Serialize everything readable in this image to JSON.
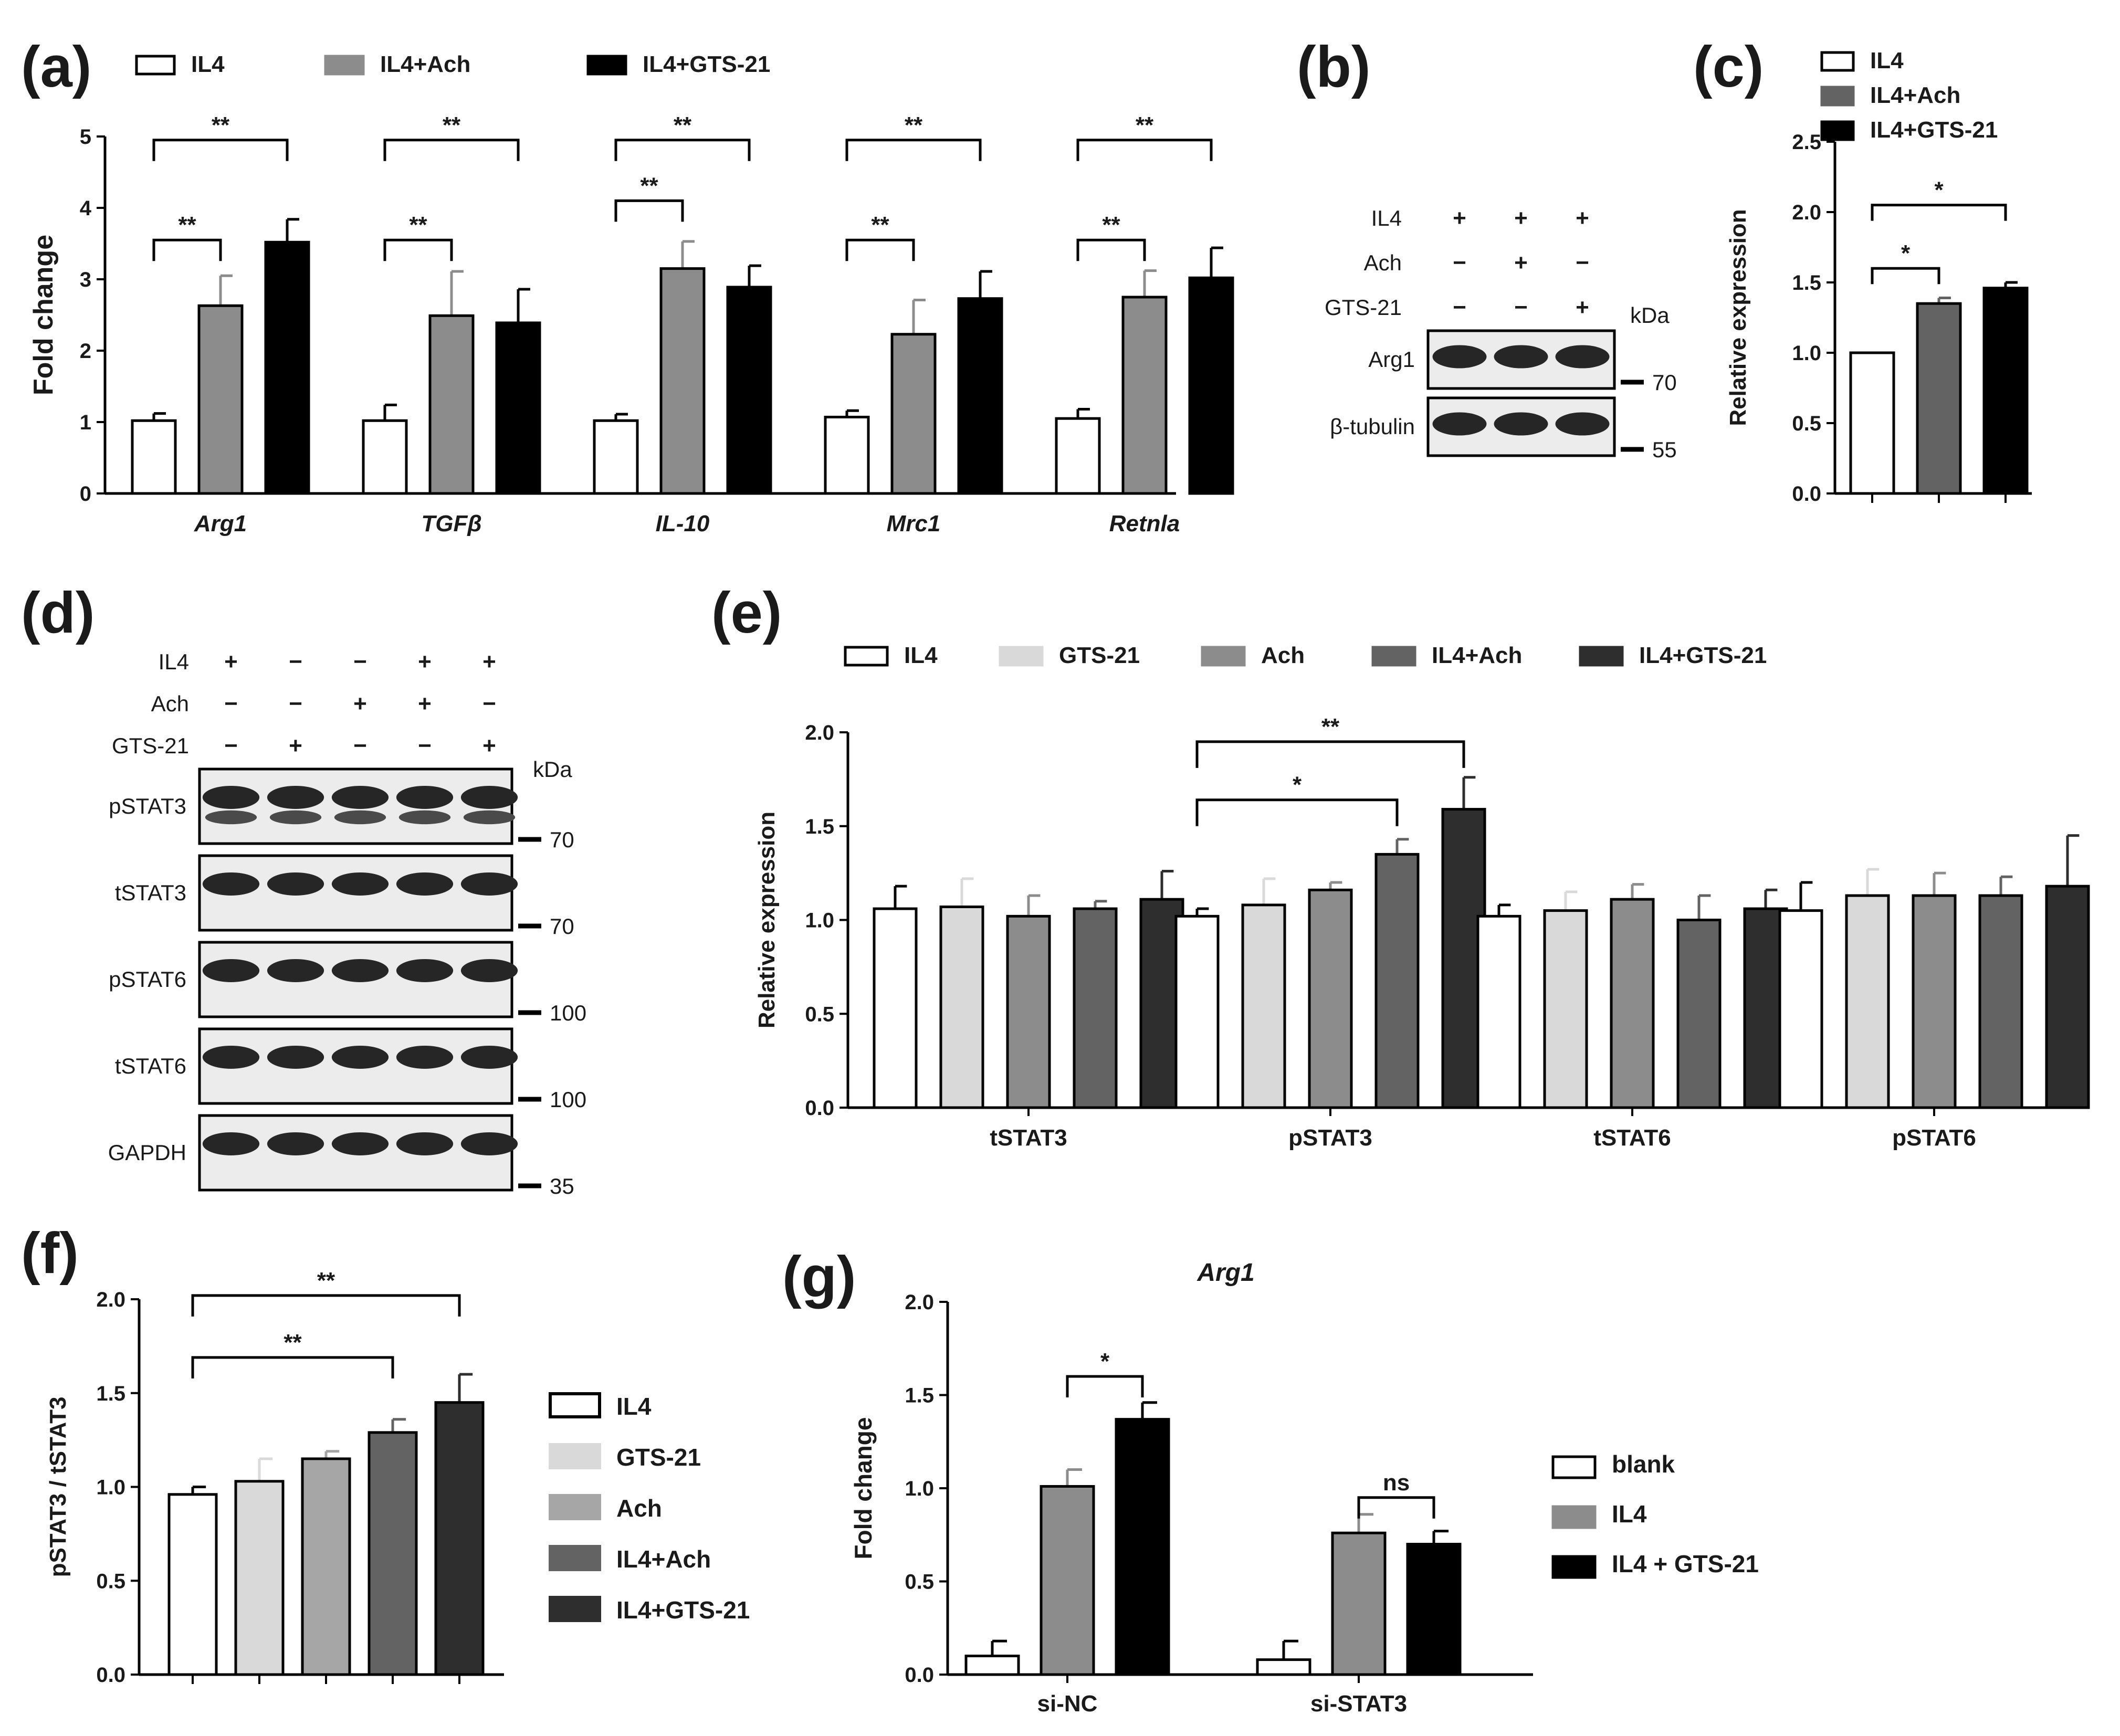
{
  "colors": {
    "white": "#ffffff",
    "lightgray": "#d9d9d9",
    "midgray": "#a6a6a6",
    "gray": "#8c8c8c",
    "darkgray": "#636363",
    "nearblack": "#2e2e2e",
    "black": "#000000"
  },
  "chart_data": [
    {
      "panel": "(a)",
      "type": "bar",
      "ylabel": "Fold change",
      "ylim": [
        0,
        5
      ],
      "yticks": [
        "0",
        "1",
        "2",
        "3",
        "4",
        "5"
      ],
      "categories": [
        "Arg1",
        "TGFβ",
        "IL-10",
        "Mrc1",
        "Retnla"
      ],
      "series": [
        {
          "name": "IL4",
          "color": "#ffffff",
          "values": [
            1.02,
            1.02,
            1.02,
            1.07,
            1.05
          ],
          "errors": [
            0.1,
            0.22,
            0.09,
            0.09,
            0.13
          ]
        },
        {
          "name": "IL4+Ach",
          "color": "#8c8c8c",
          "values": [
            2.63,
            2.49,
            3.15,
            2.23,
            2.75
          ],
          "errors": [
            0.42,
            0.62,
            0.38,
            0.48,
            0.37
          ]
        },
        {
          "name": "IL4+GTS-21",
          "color": "#000000",
          "values": [
            3.52,
            2.39,
            2.89,
            2.73,
            3.02
          ],
          "errors": [
            0.32,
            0.47,
            0.3,
            0.38,
            0.42
          ]
        }
      ],
      "significance": [
        {
          "label": "**",
          "group": 0,
          "from": 0,
          "to": 1,
          "y": 3.55
        },
        {
          "label": "**",
          "group": 0,
          "from": 0,
          "to": 2,
          "y": 4.95
        },
        {
          "label": "**",
          "group": 1,
          "from": 0,
          "to": 1,
          "y": 3.55
        },
        {
          "label": "**",
          "group": 1,
          "from": 0,
          "to": 2,
          "y": 4.95
        },
        {
          "label": "**",
          "group": 2,
          "from": 0,
          "to": 1,
          "y": 4.1
        },
        {
          "label": "**",
          "group": 2,
          "from": 0,
          "to": 2,
          "y": 4.95
        },
        {
          "label": "**",
          "group": 3,
          "from": 0,
          "to": 1,
          "y": 3.55
        },
        {
          "label": "**",
          "group": 3,
          "from": 0,
          "to": 2,
          "y": 4.95
        },
        {
          "label": "**",
          "group": 4,
          "from": 0,
          "to": 1,
          "y": 3.55
        },
        {
          "label": "**",
          "group": 4,
          "from": 0,
          "to": 2,
          "y": 4.95
        }
      ]
    },
    {
      "panel": "(c)",
      "type": "bar",
      "ylabel": "Relative expression",
      "ylim": [
        0,
        2.5
      ],
      "yticks": [
        "0.0",
        "0.5",
        "1.0",
        "1.5",
        "2.0",
        "2.5"
      ],
      "categories": [
        "IL4",
        "IL4+Ach",
        "IL4+GTS-21"
      ],
      "values": [
        1.0,
        1.35,
        1.46
      ],
      "errors": [
        0,
        0.04,
        0.04
      ],
      "colors": [
        "#ffffff",
        "#636363",
        "#000000"
      ],
      "significance": [
        {
          "label": "*",
          "from": 0,
          "to": 1,
          "y": 1.6
        },
        {
          "label": "*",
          "from": 0,
          "to": 2,
          "y": 2.05
        }
      ]
    },
    {
      "panel": "(e)",
      "type": "bar",
      "ylabel": "Relative expression",
      "ylim": [
        0,
        2.0
      ],
      "yticks": [
        "0.0",
        "0.5",
        "1.0",
        "1.5",
        "2.0"
      ],
      "categories": [
        "tSTAT3",
        "pSTAT3",
        "tSTAT6",
        "pSTAT6"
      ],
      "series": [
        {
          "name": "IL4",
          "color": "#ffffff",
          "values": [
            1.06,
            1.02,
            1.02,
            1.05
          ],
          "errors": [
            0.12,
            0.04,
            0.06,
            0.15
          ]
        },
        {
          "name": "GTS-21",
          "color": "#d9d9d9",
          "values": [
            1.07,
            1.08,
            1.05,
            1.13
          ],
          "errors": [
            0.15,
            0.14,
            0.1,
            0.14
          ]
        },
        {
          "name": "Ach",
          "color": "#8c8c8c",
          "values": [
            1.02,
            1.16,
            1.11,
            1.13
          ],
          "errors": [
            0.11,
            0.04,
            0.08,
            0.12
          ]
        },
        {
          "name": "IL4+Ach",
          "color": "#636363",
          "values": [
            1.06,
            1.35,
            1.0,
            1.13
          ],
          "errors": [
            0.04,
            0.08,
            0.13,
            0.1
          ]
        },
        {
          "name": "IL4+GTS-21",
          "color": "#2e2e2e",
          "values": [
            1.11,
            1.59,
            1.06,
            1.18
          ],
          "errors": [
            0.15,
            0.17,
            0.1,
            0.27
          ]
        }
      ],
      "significance": [
        {
          "label": "*",
          "group": 1,
          "from": 0,
          "to": 3,
          "y": 1.64
        },
        {
          "label": "**",
          "group": 1,
          "from": 0,
          "to": 4,
          "y": 1.95
        }
      ]
    },
    {
      "panel": "(f)",
      "type": "bar",
      "ylabel": "pSTAT3 / tSTAT3",
      "ylim": [
        0,
        2.0
      ],
      "yticks": [
        "0.0",
        "0.5",
        "1.0",
        "1.5",
        "2.0"
      ],
      "categories": [
        "IL4",
        "GTS-21",
        "Ach",
        "IL4+Ach",
        "IL4+GTS-21"
      ],
      "values": [
        0.96,
        1.03,
        1.15,
        1.29,
        1.45
      ],
      "errors": [
        0.04,
        0.12,
        0.04,
        0.07,
        0.15
      ],
      "colors": [
        "#ffffff",
        "#d9d9d9",
        "#a6a6a6",
        "#636363",
        "#2e2e2e"
      ],
      "significance": [
        {
          "label": "**",
          "from": 0,
          "to": 3,
          "y": 1.69
        },
        {
          "label": "**",
          "from": 0,
          "to": 4,
          "y": 2.02
        }
      ]
    },
    {
      "panel": "(g)",
      "type": "bar",
      "title": "Arg1",
      "ylabel": "Fold change",
      "ylim": [
        0,
        2.0
      ],
      "yticks": [
        "0.0",
        "0.5",
        "1.0",
        "1.5",
        "2.0"
      ],
      "categories": [
        "si-NC",
        "si-STAT3"
      ],
      "series": [
        {
          "name": "blank",
          "color": "#ffffff",
          "values": [
            0.1,
            0.08
          ],
          "errors": [
            0.08,
            0.1
          ]
        },
        {
          "name": "IL4",
          "color": "#8c8c8c",
          "values": [
            1.01,
            0.76
          ],
          "errors": [
            0.09,
            0.1
          ]
        },
        {
          "name": "IL4 + GTS-21",
          "color": "#000000",
          "values": [
            1.37,
            0.7
          ],
          "errors": [
            0.09,
            0.07
          ]
        }
      ],
      "significance": [
        {
          "label": "*",
          "group": 0,
          "from": 1,
          "to": 2,
          "y": 1.6
        },
        {
          "label": "ns",
          "group": 1,
          "from": 1,
          "to": 2,
          "y": 0.95
        }
      ]
    }
  ],
  "blots": {
    "b": {
      "label": "(b)",
      "treatments": [
        {
          "name": "IL4",
          "signs": [
            "+",
            "+",
            "+"
          ]
        },
        {
          "name": "Ach",
          "signs": [
            "−",
            "+",
            "−"
          ]
        },
        {
          "name": "GTS-21",
          "signs": [
            "−",
            "−",
            "+"
          ]
        }
      ],
      "kda_label": "kDa",
      "rows": [
        {
          "name": "Arg1",
          "marker": "70"
        },
        {
          "name": "β-tubulin",
          "marker": "55"
        }
      ]
    },
    "d": {
      "label": "(d)",
      "treatments": [
        {
          "name": "IL4",
          "signs": [
            "+",
            "−",
            "−",
            "+",
            "+"
          ]
        },
        {
          "name": "Ach",
          "signs": [
            "−",
            "−",
            "+",
            "+",
            "−"
          ]
        },
        {
          "name": "GTS-21",
          "signs": [
            "−",
            "+",
            "−",
            "−",
            "+"
          ]
        }
      ],
      "kda_label": "kDa",
      "rows": [
        {
          "name": "pSTAT3",
          "marker": "70"
        },
        {
          "name": "tSTAT3",
          "marker": "70"
        },
        {
          "name": "pSTAT6",
          "marker": "100"
        },
        {
          "name": "tSTAT6",
          "marker": "100"
        },
        {
          "name": "GAPDH",
          "marker": "35"
        }
      ]
    }
  }
}
